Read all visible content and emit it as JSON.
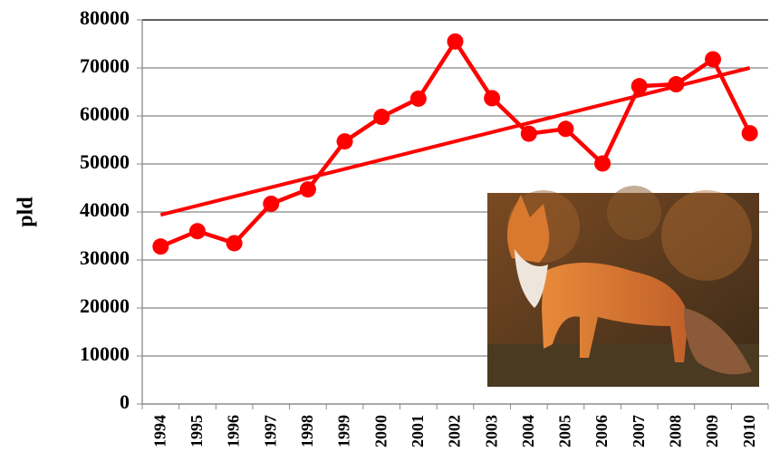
{
  "chart_data": {
    "type": "line",
    "y_label": "pld",
    "categories": [
      "1994",
      "1995",
      "1996",
      "1997",
      "1998",
      "1999",
      "2000",
      "2001",
      "2002",
      "2003",
      "2004",
      "2005",
      "2006",
      "2007",
      "2008",
      "2009",
      "2010"
    ],
    "series": [
      {
        "color": "#ff0000",
        "values": [
          32800,
          36000,
          33500,
          41700,
          44700,
          54700,
          59800,
          63600,
          75500,
          63700,
          56300,
          57300,
          50100,
          66200,
          66600,
          71800,
          56400
        ]
      }
    ],
    "trend": [
      39400,
      70000
    ],
    "ylim": [
      0,
      80000
    ],
    "yticks": [
      0,
      10000,
      20000,
      30000,
      40000,
      50000,
      60000,
      70000,
      80000
    ],
    "grid": true
  }
}
